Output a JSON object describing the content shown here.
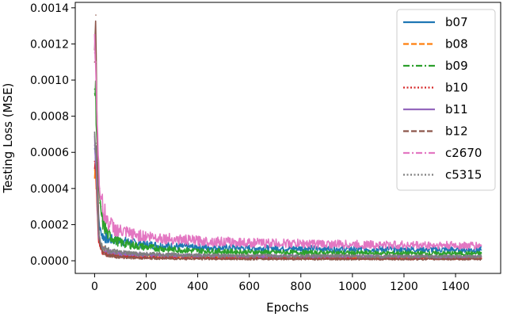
{
  "chart_data": {
    "type": "line",
    "xlabel": "Epochs",
    "ylabel": "Testing Loss (MSE)",
    "xlim": [
      -75,
      1575
    ],
    "ylim": [
      -7e-05,
      0.00143
    ],
    "xticks": [
      0,
      200,
      400,
      600,
      800,
      1000,
      1200,
      1400
    ],
    "yticks": [
      0.0,
      0.0002,
      0.0004,
      0.0006,
      0.0008,
      0.001,
      0.0012,
      0.0014
    ],
    "ytick_labels": [
      "0.0000",
      "0.0002",
      "0.0004",
      "0.0006",
      "0.0008",
      "0.0010",
      "0.0012",
      "0.0014"
    ],
    "grid": false,
    "legend_position": "top-right",
    "series": [
      {
        "name": "b07",
        "color": "#1f77b4",
        "dash": "solid",
        "x": [
          0,
          5,
          10,
          15,
          20,
          30,
          50,
          75,
          100,
          150,
          200,
          300,
          400,
          600,
          800,
          1000,
          1200,
          1400,
          1500
        ],
        "y": [
          0.00062,
          0.00058,
          0.0004,
          0.00025,
          0.00018,
          0.00014,
          0.00012,
          0.000115,
          0.00011,
          0.0001,
          9e-05,
          8e-05,
          7.5e-05,
          7e-05,
          6.8e-05,
          6.5e-05,
          6.3e-05,
          6.1e-05,
          6e-05
        ]
      },
      {
        "name": "b08",
        "color": "#ff7f0e",
        "dash": "dashed",
        "x": [
          0,
          5,
          10,
          15,
          20,
          30,
          50,
          75,
          100,
          150,
          200,
          300,
          400,
          600,
          800,
          1000,
          1200,
          1400,
          1500
        ],
        "y": [
          0.0005,
          0.00048,
          0.0003,
          0.00015,
          0.0001,
          7e-05,
          5e-05,
          4e-05,
          3.5e-05,
          3e-05,
          2.8e-05,
          2.5e-05,
          2.2e-05,
          2e-05,
          1.9e-05,
          1.8e-05,
          1.7e-05,
          1.6e-05,
          1.6e-05
        ]
      },
      {
        "name": "b09",
        "color": "#2ca02c",
        "dash": "dashdot",
        "x": [
          0,
          5,
          10,
          15,
          20,
          30,
          50,
          75,
          100,
          150,
          200,
          300,
          400,
          600,
          800,
          1000,
          1200,
          1400,
          1500
        ],
        "y": [
          0.00095,
          0.0009,
          0.00065,
          0.00045,
          0.00032,
          0.00022,
          0.00015,
          0.00012,
          0.0001,
          8.5e-05,
          7.5e-05,
          6.2e-05,
          5.5e-05,
          4.8e-05,
          4.5e-05,
          4.3e-05,
          4.1e-05,
          4e-05,
          4e-05
        ]
      },
      {
        "name": "b10",
        "color": "#d62728",
        "dash": "dotted",
        "x": [
          0,
          5,
          10,
          15,
          20,
          30,
          50,
          75,
          100,
          150,
          200,
          300,
          400,
          600,
          800,
          1000,
          1200,
          1400,
          1500
        ],
        "y": [
          0.00055,
          0.0005,
          0.00028,
          0.00012,
          8e-05,
          5e-05,
          3.5e-05,
          3e-05,
          2.5e-05,
          2.2e-05,
          2e-05,
          1.8e-05,
          1.6e-05,
          1.5e-05,
          1.4e-05,
          1.3e-05,
          1.2e-05,
          1.2e-05,
          1.2e-05
        ]
      },
      {
        "name": "b11",
        "color": "#9467bd",
        "dash": "solid",
        "x": [
          0,
          5,
          10,
          15,
          20,
          30,
          50,
          75,
          100,
          150,
          200,
          300,
          400,
          600,
          800,
          1000,
          1200,
          1400,
          1500
        ],
        "y": [
          0.00064,
          0.0006,
          0.00035,
          0.00016,
          0.0001,
          7e-05,
          5e-05,
          4.5e-05,
          4e-05,
          3.6e-05,
          3.3e-05,
          3e-05,
          2.8e-05,
          2.6e-05,
          2.5e-05,
          2.4e-05,
          2.3e-05,
          2.2e-05,
          2.2e-05
        ]
      },
      {
        "name": "b12",
        "color": "#8c564b",
        "dash": "dashed",
        "x": [
          0,
          5,
          10,
          15,
          20,
          30,
          50,
          75,
          100,
          150,
          200,
          300,
          400,
          600,
          800,
          1000,
          1200,
          1400,
          1500
        ],
        "y": [
          0.0011,
          0.00136,
          0.0007,
          0.0002,
          0.0001,
          5e-05,
          3e-05,
          2.5e-05,
          2e-05,
          1.6e-05,
          1.4e-05,
          1.2e-05,
          1.1e-05,
          1e-05,
          1e-05,
          9e-06,
          9e-06,
          9e-06,
          9e-06
        ]
      },
      {
        "name": "c2670",
        "color": "#e377c2",
        "dash": "dashdot",
        "x": [
          0,
          5,
          10,
          15,
          20,
          30,
          50,
          75,
          100,
          150,
          200,
          300,
          400,
          600,
          800,
          1000,
          1200,
          1400,
          1500
        ],
        "y": [
          0.00115,
          0.0011,
          0.0008,
          0.00055,
          0.0004,
          0.0003,
          0.00022,
          0.00018,
          0.00016,
          0.000145,
          0.000135,
          0.00012,
          0.00011,
          0.0001,
          9.5e-05,
          9e-05,
          8.7e-05,
          8.5e-05,
          8.3e-05
        ]
      },
      {
        "name": "c5315",
        "color": "#7f7f7f",
        "dash": "dotted",
        "x": [
          0,
          5,
          10,
          15,
          20,
          30,
          50,
          75,
          100,
          150,
          200,
          300,
          400,
          600,
          800,
          1000,
          1200,
          1400,
          1500
        ],
        "y": [
          0.0007,
          0.00065,
          0.0004,
          0.0002,
          0.00012,
          8e-05,
          6e-05,
          5e-05,
          4.5e-05,
          4e-05,
          3.7e-05,
          3.3e-05,
          3e-05,
          2.8e-05,
          2.7e-05,
          2.6e-05,
          2.5e-05,
          2.4e-05,
          2.4e-05
        ]
      }
    ]
  }
}
